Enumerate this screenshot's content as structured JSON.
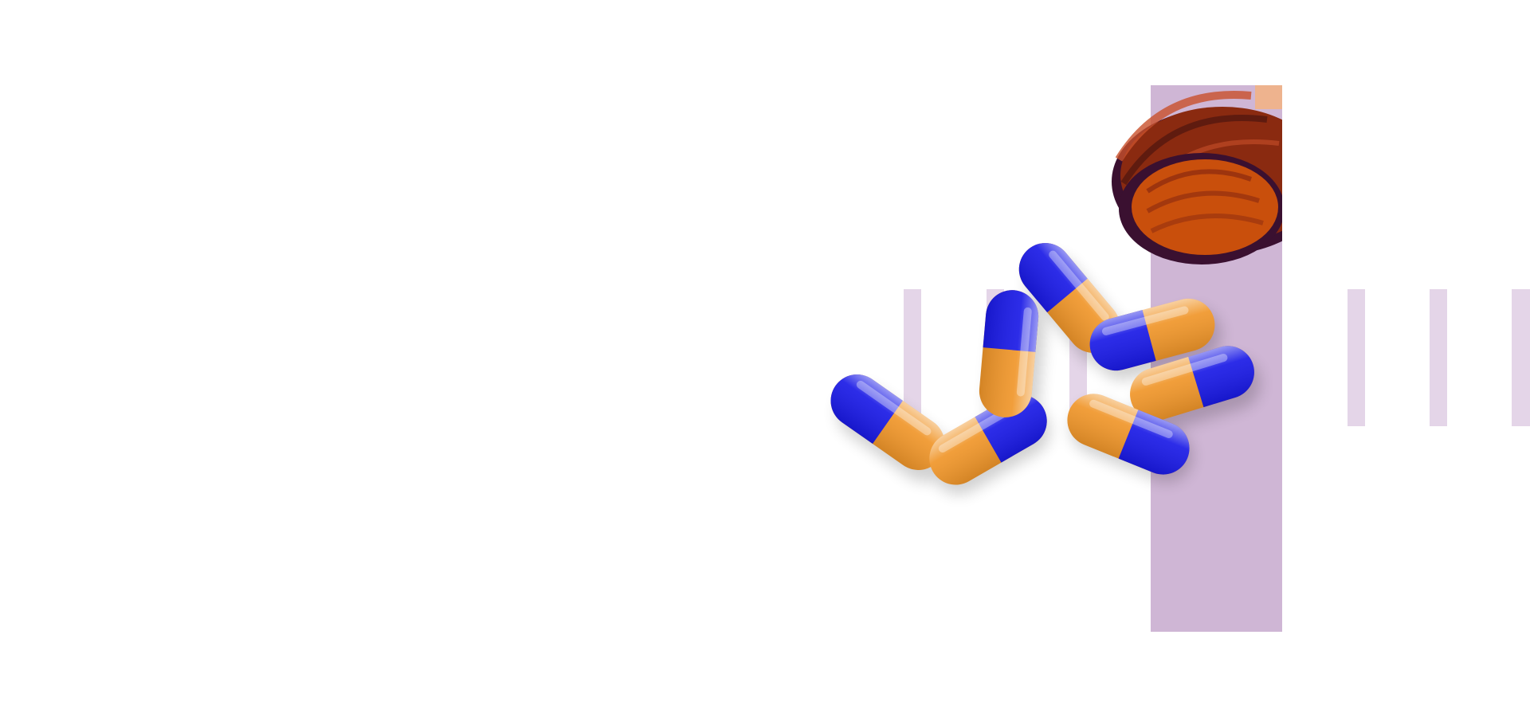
{
  "hero": {
    "colors": {
      "band": "#cfb6d5",
      "stripe": "#e4d5e8",
      "capsule_blue": "#1a1ae6",
      "capsule_orange": "#f0962a",
      "bottle_amber": "#8a2a10",
      "bottle_shadow": "#3a1030",
      "bottle_inner": "#c94f0c"
    },
    "icons": [
      "capsule-icon",
      "pill-bottle-icon"
    ]
  }
}
